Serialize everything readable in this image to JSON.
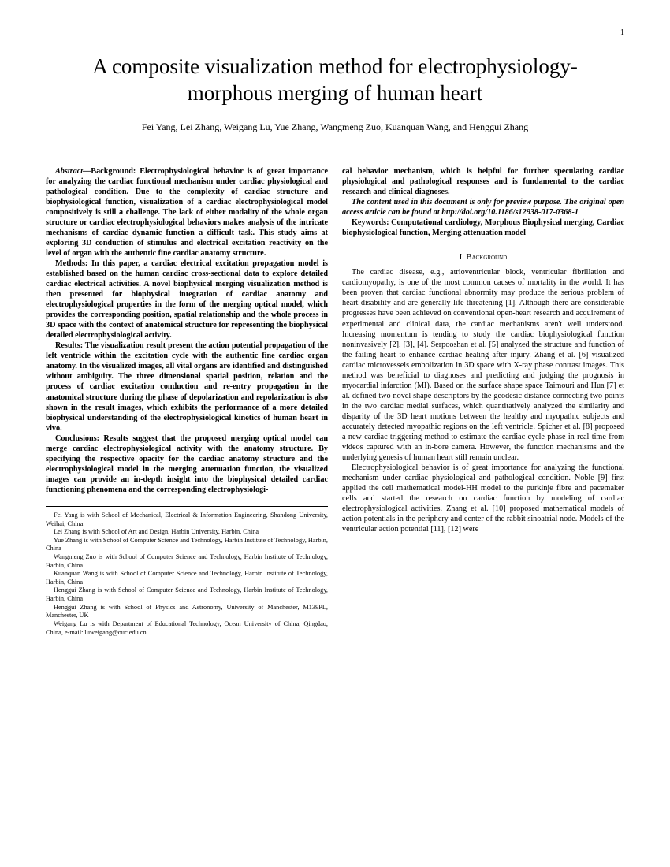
{
  "page_number": "1",
  "title": "A composite visualization method for electrophysiology-morphous merging of human heart",
  "authors": "Fei Yang, Lei Zhang, Weigang Lu, Yue Zhang, Wangmeng Zuo, Kuanquan Wang, and Henggui Zhang",
  "abstract": {
    "label": "Abstract—",
    "background": "Background: Electrophysiological behavior is of great importance for analyzing the cardiac functional mechanism under cardiac physiological and pathological condition. Due to the complexity of cardiac structure and biophysiological function, visualization of a cardiac electrophysiological model compositively is still a challenge. The lack of either modality of the whole organ structure or cardiac electrophysiological behaviors makes analysis of the intricate mechanisms of cardiac dynamic function a difficult task. This study aims at exploring 3D conduction of stimulus and electrical excitation reactivity on the level of organ with the authentic fine cardiac anatomy structure.",
    "methods": "Methods: In this paper, a cardiac electrical excitation propagation model is established based on the human cardiac cross-sectional data to explore detailed cardiac electrical activities. A novel biophysical merging visualization method is then presented for biophysical integration of cardiac anatomy and electrophysiological properties in the form of the merging optical model, which provides the corresponding position, spatial relationship and the whole process in 3D space with the context of anatomical structure for representing the biophysical detailed electrophysiological activity.",
    "results": "Results: The visualization result present the action potential propagation of the left ventricle within the excitation cycle with the authentic fine cardiac organ anatomy. In the visualized images, all vital organs are identified and distinguished without ambiguity. The three dimensional spatial position, relation and the process of cardiac excitation conduction and re-entry propagation in the anatomical structure during the phase of depolarization and repolarization is also shown in the result images, which exhibits the performance of a more detailed biophysical understanding of the electrophysiological kinetics of human heart in vivo.",
    "conclusions": "Conclusions: Results suggest that the proposed merging optical model can merge cardiac electrophysiological activity with the anatomy structure. By specifying the respective opacity for the cardiac anatomy structure and the electrophysiological model in the merging attenuation function, the visualized images can provide an in-depth insight into the biophysical detailed cardiac functioning phenomena and the corresponding electrophysiologi-"
  },
  "right_abstract_continuation": "cal behavior mechanism, which is helpful for further speculating cardiac physiological and pathological responses and is fundamental to the cardiac research and clinical diagnoses.",
  "preview_note": "The content used in this document is only for preview purpose. The original open access article can be found at http://doi.org/10.1186/s12938-017-0368-1",
  "keywords": "Keywords: Computational cardiology, Morphous Biophysical merging, Cardiac biophysiological function, Merging attenuation model",
  "section_heading": "I.  Background",
  "body_p1": "The cardiac disease, e.g., atrioventricular block, ventricular fibrillation and cardiomyopathy, is one of the most common causes of mortality in the world. It has been proven that cardiac functional abnormity may produce the serious problem of heart disability and are generally life-threatening [1]. Although there are considerable progresses have been achieved on conventional open-heart research and acquirement of experimental and clinical data, the cardiac mechanisms aren't well understood. Increasing momentum is tending to study the cardiac biophysiological function noninvasively [2], [3], [4]. Serpooshan et al. [5] analyzed the structure and function of the failing heart to enhance cardiac healing after injury. Zhang et al. [6] visualized cardiac microvessels embolization in 3D space with X-ray phase contrast images. This method was beneficial to diagnoses and predicting and judging the prognosis in myocardial infarction (MI). Based on the surface shape space Taimouri and Hua [7] et al. defined two novel shape descriptors by the geodesic distance connecting two points in the two cardiac medial surfaces, which quantitatively analyzed the similarity and disparity of the 3D heart motions between the healthy and myopathic subjects and accurately detected myopathic regions on the left ventricle. Spicher et al. [8] proposed a new cardiac triggering method to estimate the cardiac cycle phase in real-time from videos captured with an in-bore camera. However, the function mechanisms and the underlying genesis of human heart still remain unclear.",
  "body_p2": "Electrophysiological behavior is of great importance for analyzing the functional mechanism under cardiac physiological and pathological condition. Noble [9] first applied the cell mathematical model-HH model to the purkinje fibre and pacemaker cells and started the research on cardiac function by modeling of cardiac electrophysiological activities. Zhang et al. [10] proposed mathematical models of action potentials in the periphery and center of the rabbit sinoatrial node. Models of the ventricular action potential [11], [12] were",
  "affiliations": [
    "Fei Yang is with School of Mechanical, Electrical & Information Engineering, Shandong University, Weihai, China",
    "Lei Zhang is with School of Art and Design, Harbin University, Harbin, China",
    "Yue Zhang is with School of Computer Science and Technology, Harbin Institute of Technology, Harbin, China",
    "Wangmeng Zuo is with School of Computer Science and Technology, Harbin Institute of Technology, Harbin, China",
    "Kuanquan Wang is with School of Computer Science and Technology, Harbin Institute of Technology, Harbin, China",
    "Henggui Zhang is with School of Computer Science and Technology, Harbin Institute of Technology, Harbin, China",
    "Henggui Zhang is with School of Physics and Astronomy, University of Manchester, M139PL, Manchester, UK",
    "Weigang Lu is with Department of Educational Technology, Ocean University of China, Qingdao, China, e-mail: luweigang@ouc.edu.cn"
  ]
}
